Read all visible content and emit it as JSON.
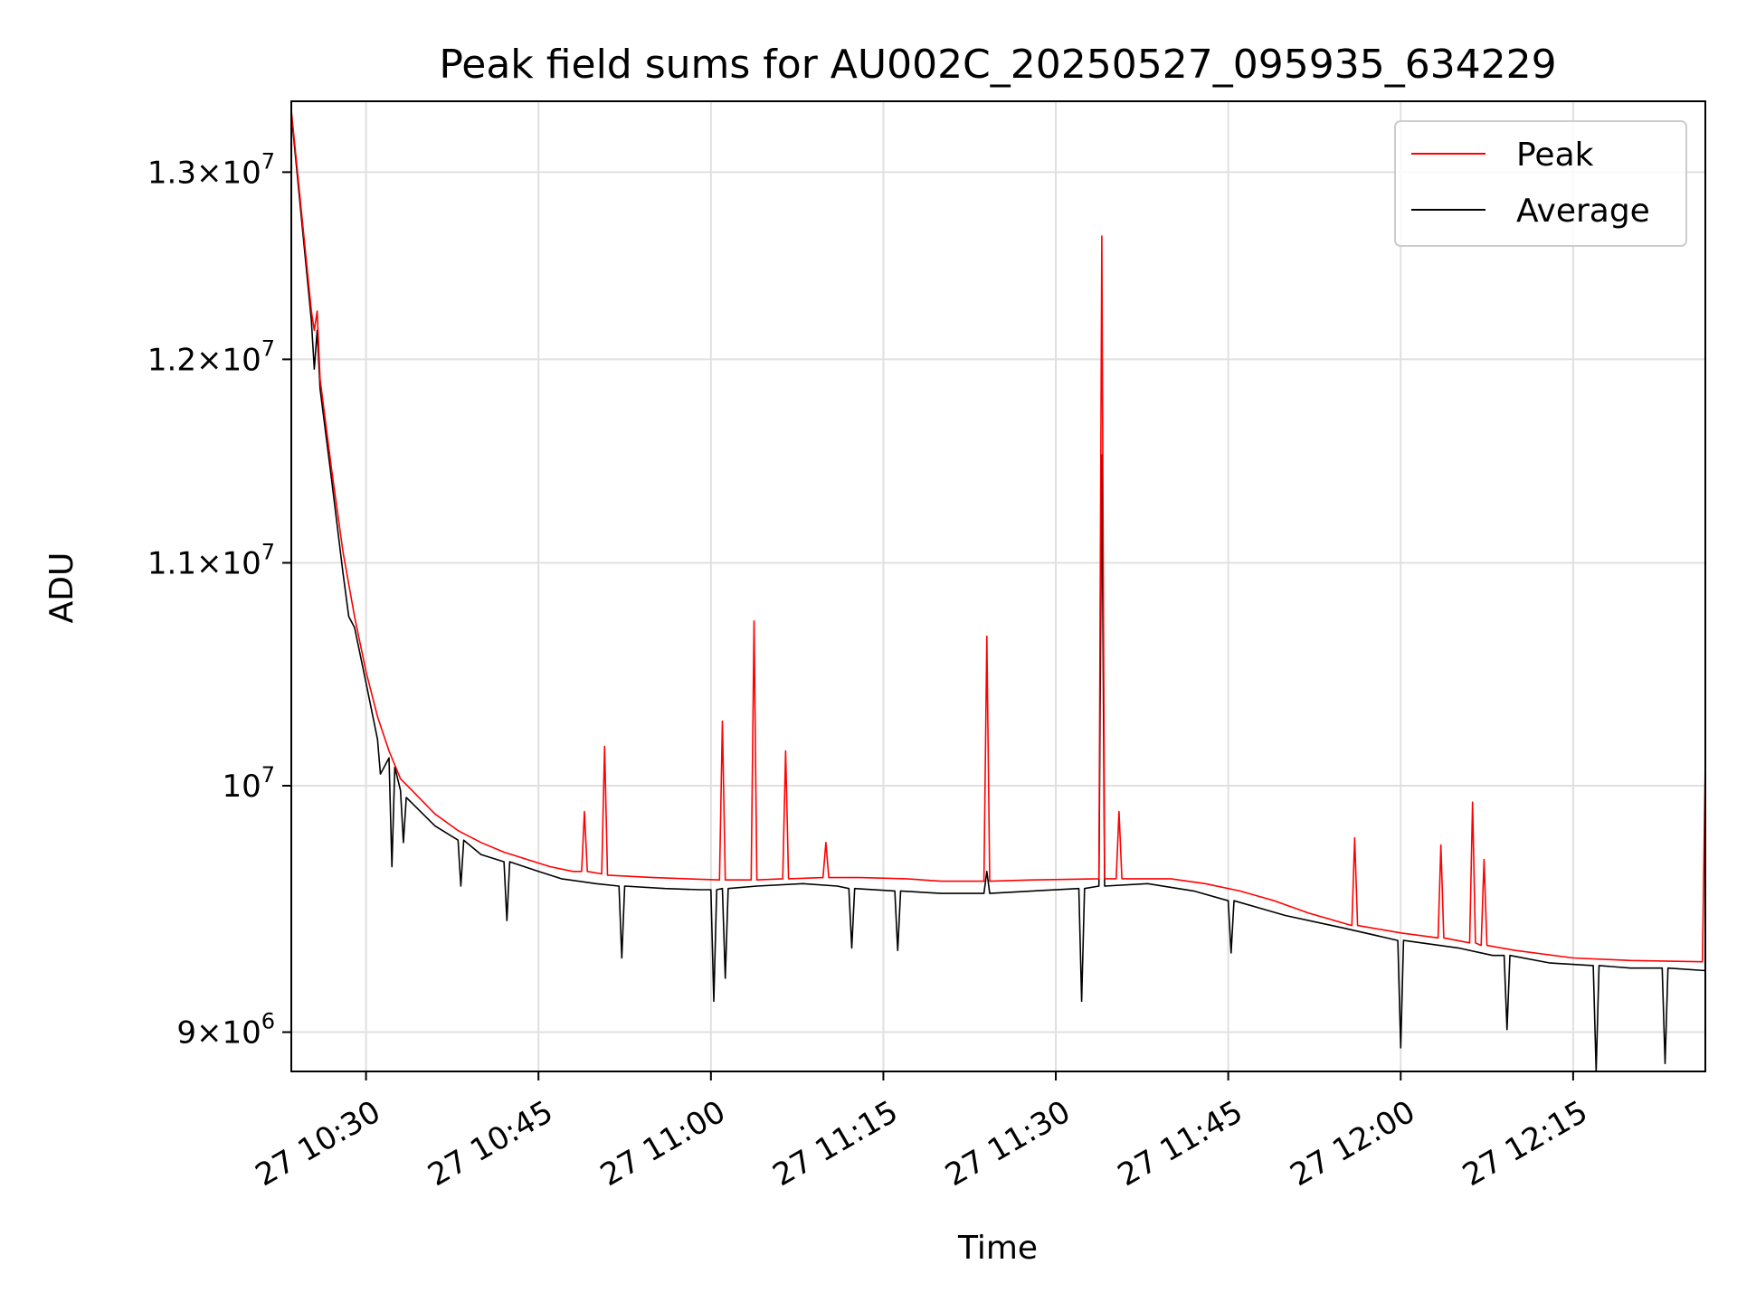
{
  "chart_data": {
    "type": "line",
    "title": "Peak field sums for AU002C_20250527_095935_634229",
    "xlabel": "Time",
    "ylabel": "ADU",
    "y_scale": "log",
    "grid": true,
    "legend_position": "top-right",
    "xlim": [
      "2025-05-27T10:23:30",
      "2025-05-27T12:26:30"
    ],
    "ylim": [
      8850000,
      13400000
    ],
    "x_ticks": [
      {
        "value": "2025-05-27T10:30:00",
        "label": "27 10:30"
      },
      {
        "value": "2025-05-27T10:45:00",
        "label": "27 10:45"
      },
      {
        "value": "2025-05-27T11:00:00",
        "label": "27 11:00"
      },
      {
        "value": "2025-05-27T11:15:00",
        "label": "27 11:15"
      },
      {
        "value": "2025-05-27T11:30:00",
        "label": "27 11:30"
      },
      {
        "value": "2025-05-27T11:45:00",
        "label": "27 11:45"
      },
      {
        "value": "2025-05-27T12:00:00",
        "label": "27 12:00"
      },
      {
        "value": "2025-05-27T12:15:00",
        "label": "27 12:15"
      }
    ],
    "y_ticks": [
      {
        "value": 9000000,
        "mantissa": "9",
        "exponent": "6"
      },
      {
        "value": 10000000,
        "mantissa": "",
        "exponent": "7"
      },
      {
        "value": 11000000,
        "mantissa": "1.1",
        "exponent": "7"
      },
      {
        "value": 12000000,
        "mantissa": "1.2",
        "exponent": "7"
      },
      {
        "value": 13000000,
        "mantissa": "1.3",
        "exponent": "7"
      }
    ],
    "series": [
      {
        "name": "Peak",
        "color": "#ff0000",
        "points": [
          [
            "2025-05-27T10:23:30",
            13350000
          ],
          [
            "2025-05-27T10:25:15",
            12250000
          ],
          [
            "2025-05-27T10:25:30",
            12150000
          ],
          [
            "2025-05-27T10:25:45",
            12250000
          ],
          [
            "2025-05-27T10:26:00",
            11900000
          ],
          [
            "2025-05-27T10:27:00",
            11450000
          ],
          [
            "2025-05-27T10:28:00",
            11050000
          ],
          [
            "2025-05-27T10:29:00",
            10750000
          ],
          [
            "2025-05-27T10:30:00",
            10500000
          ],
          [
            "2025-05-27T10:31:00",
            10300000
          ],
          [
            "2025-05-27T10:32:00",
            10150000
          ],
          [
            "2025-05-27T10:33:00",
            10030000
          ],
          [
            "2025-05-27T10:34:00",
            9980000
          ],
          [
            "2025-05-27T10:36:00",
            9880000
          ],
          [
            "2025-05-27T10:38:00",
            9810000
          ],
          [
            "2025-05-27T10:40:00",
            9760000
          ],
          [
            "2025-05-27T10:42:00",
            9720000
          ],
          [
            "2025-05-27T10:44:00",
            9690000
          ],
          [
            "2025-05-27T10:46:00",
            9660000
          ],
          [
            "2025-05-27T10:48:00",
            9640000
          ],
          [
            "2025-05-27T10:48:45",
            9640000
          ],
          [
            "2025-05-27T10:49:00",
            9890000
          ],
          [
            "2025-05-27T10:49:15",
            9640000
          ],
          [
            "2025-05-27T10:50:30",
            9630000
          ],
          [
            "2025-05-27T10:50:45",
            10170000
          ],
          [
            "2025-05-27T10:51:00",
            9625000
          ],
          [
            "2025-05-27T10:55:00",
            9615000
          ],
          [
            "2025-05-27T11:00:45",
            9605000
          ],
          [
            "2025-05-27T11:01:00",
            10280000
          ],
          [
            "2025-05-27T11:01:15",
            9605000
          ],
          [
            "2025-05-27T11:03:30",
            9605000
          ],
          [
            "2025-05-27T11:03:45",
            10730000
          ],
          [
            "2025-05-27T11:04:00",
            9605000
          ],
          [
            "2025-05-27T11:06:15",
            9610000
          ],
          [
            "2025-05-27T11:06:30",
            10150000
          ],
          [
            "2025-05-27T11:06:45",
            9610000
          ],
          [
            "2025-05-27T11:09:45",
            9615000
          ],
          [
            "2025-05-27T11:10:00",
            9760000
          ],
          [
            "2025-05-27T11:10:15",
            9615000
          ],
          [
            "2025-05-27T11:13:00",
            9615000
          ],
          [
            "2025-05-27T11:17:00",
            9610000
          ],
          [
            "2025-05-27T11:20:00",
            9600000
          ],
          [
            "2025-05-27T11:23:45",
            9600000
          ],
          [
            "2025-05-27T11:24:00",
            10660000
          ],
          [
            "2025-05-27T11:24:15",
            9600000
          ],
          [
            "2025-05-27T11:28:00",
            9605000
          ],
          [
            "2025-05-27T11:33:45",
            9610000
          ],
          [
            "2025-05-27T11:34:00",
            12650000
          ],
          [
            "2025-05-27T11:34:15",
            9610000
          ],
          [
            "2025-05-27T11:35:15",
            9610000
          ],
          [
            "2025-05-27T11:35:30",
            9890000
          ],
          [
            "2025-05-27T11:35:45",
            9610000
          ],
          [
            "2025-05-27T11:40:00",
            9610000
          ],
          [
            "2025-05-27T11:43:00",
            9590000
          ],
          [
            "2025-05-27T11:46:00",
            9560000
          ],
          [
            "2025-05-27T11:49:00",
            9520000
          ],
          [
            "2025-05-27T11:52:00",
            9470000
          ],
          [
            "2025-05-27T11:55:45",
            9420000
          ],
          [
            "2025-05-27T11:56:00",
            9780000
          ],
          [
            "2025-05-27T11:56:15",
            9420000
          ],
          [
            "2025-05-27T12:00:00",
            9390000
          ],
          [
            "2025-05-27T12:03:15",
            9370000
          ],
          [
            "2025-05-27T12:03:30",
            9750000
          ],
          [
            "2025-05-27T12:03:45",
            9370000
          ],
          [
            "2025-05-27T12:06:00",
            9350000
          ],
          [
            "2025-05-27T12:06:15",
            9930000
          ],
          [
            "2025-05-27T12:06:30",
            9350000
          ],
          [
            "2025-05-27T12:07:00",
            9340000
          ],
          [
            "2025-05-27T12:07:15",
            9690000
          ],
          [
            "2025-05-27T12:07:30",
            9340000
          ],
          [
            "2025-05-27T12:10:00",
            9320000
          ],
          [
            "2025-05-27T12:15:00",
            9290000
          ],
          [
            "2025-05-27T12:20:00",
            9280000
          ],
          [
            "2025-05-27T12:26:15",
            9275000
          ],
          [
            "2025-05-27T12:26:30",
            10120000
          ]
        ]
      },
      {
        "name": "Average",
        "color": "#000000",
        "points": [
          [
            "2025-05-27T10:23:30",
            13330000
          ],
          [
            "2025-05-27T10:25:15",
            12200000
          ],
          [
            "2025-05-27T10:25:30",
            11950000
          ],
          [
            "2025-05-27T10:25:45",
            12150000
          ],
          [
            "2025-05-27T10:26:00",
            11850000
          ],
          [
            "2025-05-27T10:27:00",
            11400000
          ],
          [
            "2025-05-27T10:28:00",
            10950000
          ],
          [
            "2025-05-27T10:28:30",
            10750000
          ],
          [
            "2025-05-27T10:29:00",
            10700000
          ],
          [
            "2025-05-27T10:30:00",
            10450000
          ],
          [
            "2025-05-27T10:31:00",
            10200000
          ],
          [
            "2025-05-27T10:31:15",
            10050000
          ],
          [
            "2025-05-27T10:32:00",
            10120000
          ],
          [
            "2025-05-27T10:32:15",
            9660000
          ],
          [
            "2025-05-27T10:32:30",
            10080000
          ],
          [
            "2025-05-27T10:33:00",
            9980000
          ],
          [
            "2025-05-27T10:33:15",
            9760000
          ],
          [
            "2025-05-27T10:33:30",
            9950000
          ],
          [
            "2025-05-27T10:36:00",
            9830000
          ],
          [
            "2025-05-27T10:38:00",
            9770000
          ],
          [
            "2025-05-27T10:38:15",
            9580000
          ],
          [
            "2025-05-27T10:38:30",
            9770000
          ],
          [
            "2025-05-27T10:40:00",
            9710000
          ],
          [
            "2025-05-27T10:42:00",
            9680000
          ],
          [
            "2025-05-27T10:42:15",
            9440000
          ],
          [
            "2025-05-27T10:42:30",
            9680000
          ],
          [
            "2025-05-27T10:45:00",
            9640000
          ],
          [
            "2025-05-27T10:47:00",
            9610000
          ],
          [
            "2025-05-27T10:50:00",
            9590000
          ],
          [
            "2025-05-27T10:52:00",
            9580000
          ],
          [
            "2025-05-27T10:52:15",
            9290000
          ],
          [
            "2025-05-27T10:52:30",
            9580000
          ],
          [
            "2025-05-27T10:56:00",
            9570000
          ],
          [
            "2025-05-27T10:59:00",
            9565000
          ],
          [
            "2025-05-27T11:00:00",
            9565000
          ],
          [
            "2025-05-27T11:00:15",
            9120000
          ],
          [
            "2025-05-27T11:00:30",
            9565000
          ],
          [
            "2025-05-27T11:01:00",
            9570000
          ],
          [
            "2025-05-27T11:01:15",
            9210000
          ],
          [
            "2025-05-27T11:01:30",
            9570000
          ],
          [
            "2025-05-27T11:04:00",
            9580000
          ],
          [
            "2025-05-27T11:08:00",
            9590000
          ],
          [
            "2025-05-27T11:11:00",
            9580000
          ],
          [
            "2025-05-27T11:12:00",
            9570000
          ],
          [
            "2025-05-27T11:12:15",
            9330000
          ],
          [
            "2025-05-27T11:12:30",
            9570000
          ],
          [
            "2025-05-27T11:16:00",
            9560000
          ],
          [
            "2025-05-27T11:16:15",
            9320000
          ],
          [
            "2025-05-27T11:16:30",
            9560000
          ],
          [
            "2025-05-27T11:20:00",
            9550000
          ],
          [
            "2025-05-27T11:23:45",
            9550000
          ],
          [
            "2025-05-27T11:24:00",
            9640000
          ],
          [
            "2025-05-27T11:24:15",
            9550000
          ],
          [
            "2025-05-27T11:28:00",
            9560000
          ],
          [
            "2025-05-27T11:32:00",
            9570000
          ],
          [
            "2025-05-27T11:32:15",
            9120000
          ],
          [
            "2025-05-27T11:32:30",
            9570000
          ],
          [
            "2025-05-27T11:33:45",
            9580000
          ],
          [
            "2025-05-27T11:34:00",
            11520000
          ],
          [
            "2025-05-27T11:34:15",
            9580000
          ],
          [
            "2025-05-27T11:38:00",
            9590000
          ],
          [
            "2025-05-27T11:42:00",
            9560000
          ],
          [
            "2025-05-27T11:45:00",
            9520000
          ],
          [
            "2025-05-27T11:45:15",
            9310000
          ],
          [
            "2025-05-27T11:45:30",
            9520000
          ],
          [
            "2025-05-27T11:50:00",
            9460000
          ],
          [
            "2025-05-27T11:55:00",
            9410000
          ],
          [
            "2025-05-27T11:59:45",
            9360000
          ],
          [
            "2025-05-27T12:00:00",
            8940000
          ],
          [
            "2025-05-27T12:00:15",
            9360000
          ],
          [
            "2025-05-27T12:05:00",
            9330000
          ],
          [
            "2025-05-27T12:08:00",
            9300000
          ],
          [
            "2025-05-27T12:09:00",
            9300000
          ],
          [
            "2025-05-27T12:09:15",
            9010000
          ],
          [
            "2025-05-27T12:09:30",
            9300000
          ],
          [
            "2025-05-27T12:13:00",
            9270000
          ],
          [
            "2025-05-27T12:16:45",
            9260000
          ],
          [
            "2025-05-27T12:17:00",
            8850000
          ],
          [
            "2025-05-27T12:17:15",
            9260000
          ],
          [
            "2025-05-27T12:20:00",
            9250000
          ],
          [
            "2025-05-27T12:22:45",
            9250000
          ],
          [
            "2025-05-27T12:23:00",
            8880000
          ],
          [
            "2025-05-27T12:23:15",
            9250000
          ],
          [
            "2025-05-27T12:26:30",
            9240000
          ]
        ]
      }
    ]
  }
}
